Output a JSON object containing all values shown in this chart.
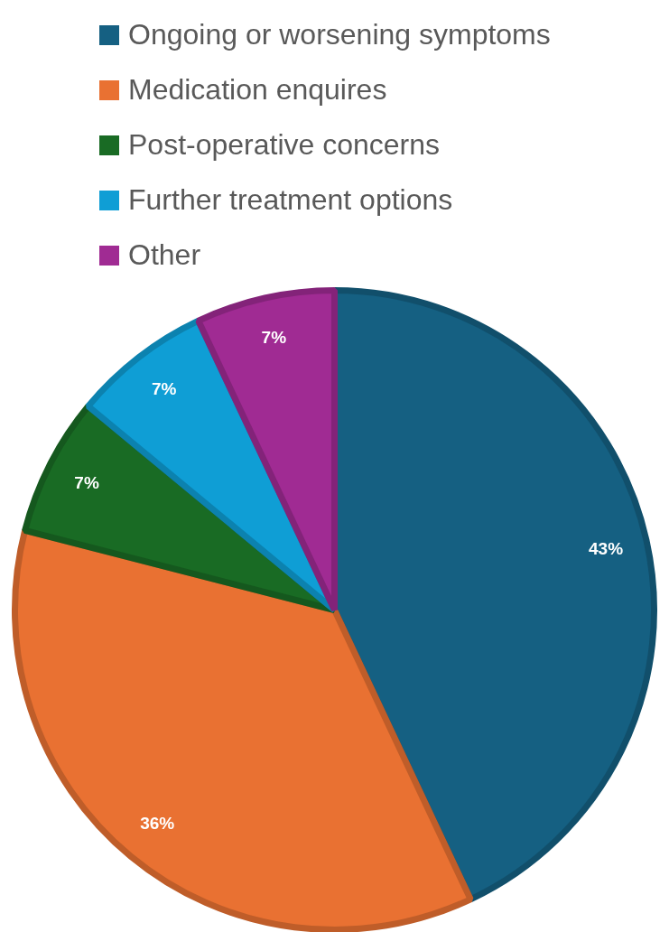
{
  "chart_data": {
    "type": "pie",
    "categories": [
      "Ongoing or worsening symptoms",
      "Medication enquires",
      "Post-operative concerns",
      "Further treatment options",
      "Other"
    ],
    "values": [
      43,
      36,
      7,
      7,
      7
    ],
    "colors": [
      "#156082",
      "#e97132",
      "#196b24",
      "#0f9ed5",
      "#a02b93"
    ],
    "value_labels": [
      "43%",
      "36%",
      "7%",
      "7%",
      "7%"
    ],
    "legend": "top"
  }
}
